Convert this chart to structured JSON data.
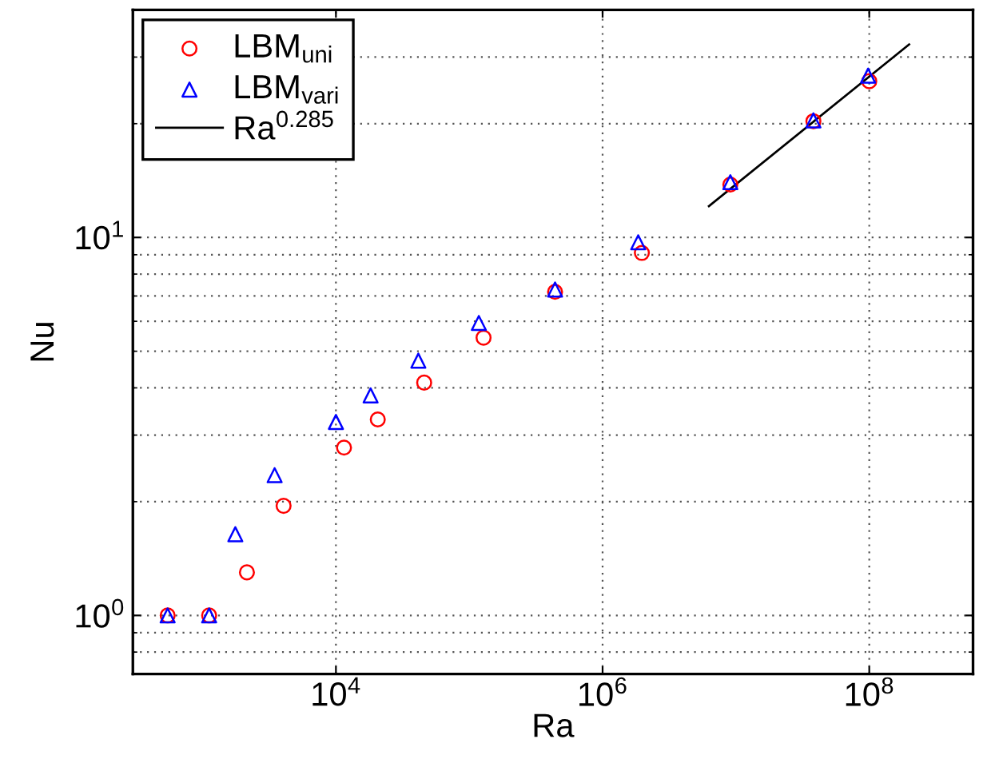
{
  "chart_data": {
    "type": "scatter",
    "xlabel": "Ra",
    "ylabel": "Nu",
    "log": "xy",
    "grid": true,
    "legend": "top left",
    "xlim": [
      300,
      600000000
    ],
    "ylim": [
      0.7,
      40
    ],
    "xticks": [
      {
        "value": 10000,
        "label": "10$^{4}$"
      },
      {
        "value": 1000000,
        "label": "10$^{6}$"
      },
      {
        "value": 100000000,
        "label": "10$^{8}$"
      }
    ],
    "yticks": [
      {
        "value": 1,
        "label": "10$^{0}$"
      },
      {
        "value": 10,
        "label": "10$^{1}$"
      }
    ],
    "series": [
      {
        "name": "LBM$_{uni}$",
        "marker": "circle",
        "color": "#ff0000",
        "x": [
          547,
          1120,
          2150,
          4050,
          11500,
          20600,
          45900,
          128000,
          440000,
          1970000,
          9080000,
          38100000,
          100000000
        ],
        "values": [
          1.0,
          1.0,
          1.3,
          1.95,
          2.78,
          3.3,
          4.13,
          5.43,
          7.18,
          9.1,
          13.8,
          20.3,
          25.9
        ]
      },
      {
        "name": "LBM$_{vari}$",
        "marker": "triangle",
        "color": "#0000ff",
        "x": [
          547,
          1120,
          1760,
          3470,
          10000,
          18200,
          41500,
          118000,
          440000,
          1850000,
          9080000,
          38100000,
          98000000
        ],
        "values": [
          1.0,
          1.0,
          1.64,
          2.35,
          3.25,
          3.82,
          4.72,
          5.94,
          7.28,
          9.71,
          14.0,
          20.4,
          26.8
        ]
      },
      {
        "name": "Ra$^{0.285}$",
        "type": "line",
        "line_style": "solid",
        "marker": "none",
        "color": "#000000",
        "x": [
          6270000,
          199000000
        ],
        "values": [
          12.1,
          32.4
        ]
      }
    ]
  }
}
